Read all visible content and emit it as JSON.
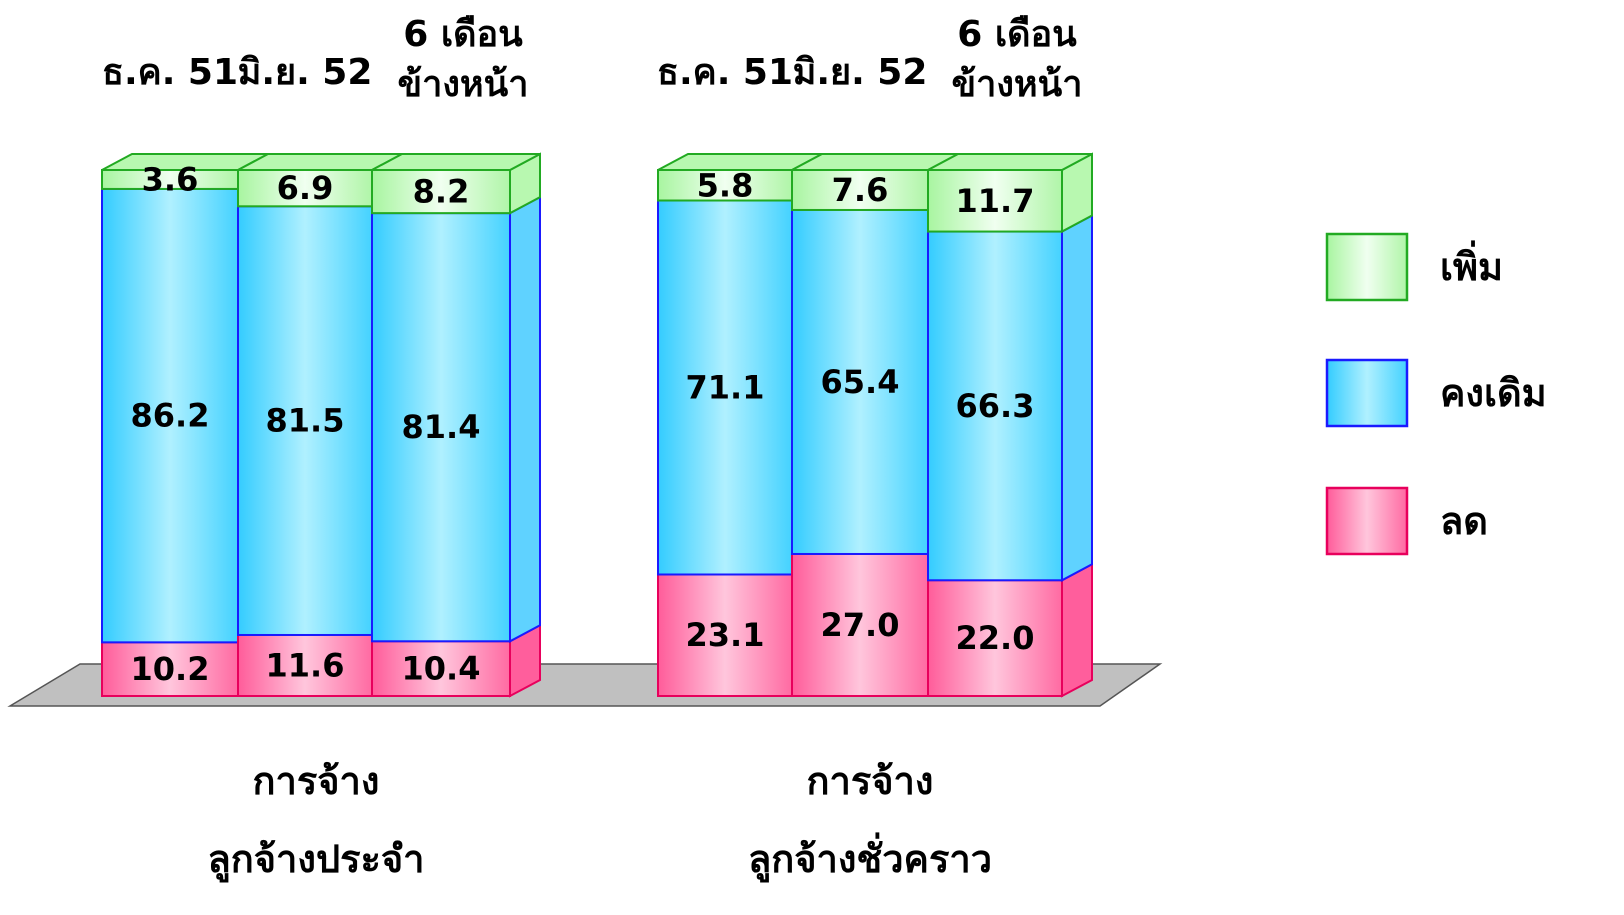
{
  "chart_data": {
    "type": "bar",
    "stacked": true,
    "style": "3d",
    "groups": [
      {
        "label_lines": [
          "การจ้าง",
          "ลูกจ้างประจำ"
        ],
        "categories": [
          {
            "lines": [
              "ธ.ค. 51"
            ]
          },
          {
            "lines": [
              "มิ.ย. 52"
            ]
          },
          {
            "lines": [
              "6 เดือน",
              "ข้างหน้า"
            ]
          }
        ]
      },
      {
        "label_lines": [
          "การจ้าง",
          "ลูกจ้างชั่วคราว"
        ],
        "categories": [
          {
            "lines": [
              "ธ.ค. 51"
            ]
          },
          {
            "lines": [
              "มิ.ย. 52"
            ]
          },
          {
            "lines": [
              "6 เดือน",
              "ข้างหน้า"
            ]
          }
        ]
      }
    ],
    "series": [
      {
        "name": "ลด",
        "values": [
          10.2,
          11.6,
          10.4,
          23.1,
          27.0,
          22.0
        ]
      },
      {
        "name": "คงเดิม",
        "values": [
          86.2,
          81.5,
          81.4,
          71.1,
          65.4,
          66.3
        ]
      },
      {
        "name": "เพิ่ม",
        "values": [
          3.6,
          6.9,
          8.2,
          5.8,
          7.6,
          11.7
        ]
      }
    ],
    "value_labels": [
      [
        "10.2",
        "11.6",
        "10.4",
        "23.1",
        "27.0",
        "22.0"
      ],
      [
        "86.2",
        "81.5",
        "81.4",
        "71.1",
        "65.4",
        "66.3"
      ],
      [
        "3.6",
        "6.9",
        "8.2",
        "5.8",
        "7.6",
        "11.7"
      ]
    ],
    "ylim": [
      0,
      100
    ],
    "legend_position": "right",
    "colors": {
      "ลด": {
        "fill": "#ff8fb8",
        "stroke": "#e8005c",
        "side": "#ff5e9c"
      },
      "คงเดิม": {
        "fill": "#8fe6ff",
        "stroke": "#1a1aff",
        "side": "#5fd2ff"
      },
      "เพิ่ม": {
        "fill": "#d4ffd0",
        "stroke": "#22aa22",
        "side": "#b8f8b0"
      }
    },
    "floor_color": "#c0c0c0",
    "legend": [
      {
        "name": "เพิ่ม",
        "series": "เพิ่ม"
      },
      {
        "name": "คงเดิม",
        "series": "คงเดิม"
      },
      {
        "name": "ลด",
        "series": "ลด"
      }
    ]
  }
}
